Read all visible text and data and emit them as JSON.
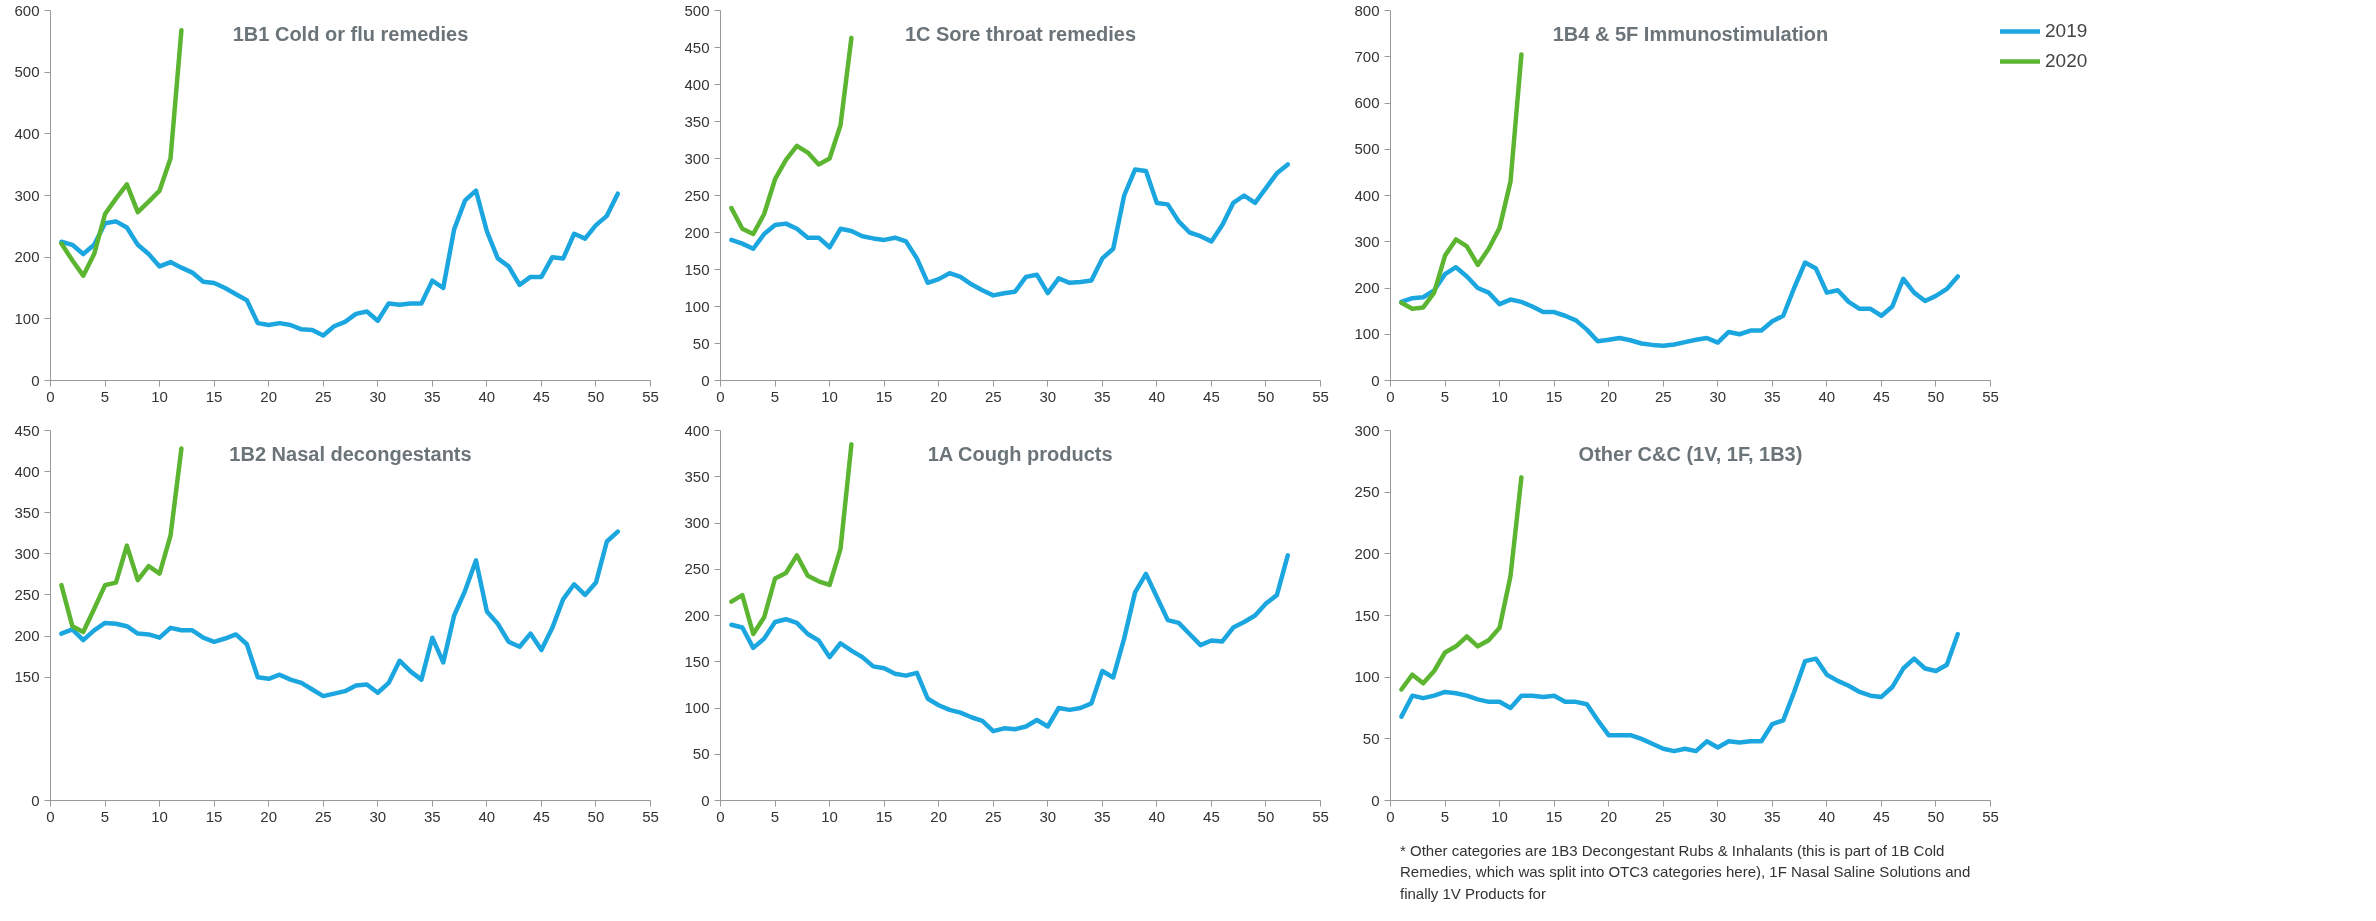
{
  "chart_data": [
    {
      "type": "line",
      "title": "1B1 Cold or flu remedies",
      "x": [
        1,
        2,
        3,
        4,
        5,
        6,
        7,
        8,
        9,
        10,
        11,
        12,
        13,
        14,
        15,
        16,
        17,
        18,
        19,
        20,
        21,
        22,
        23,
        24,
        25,
        26,
        27,
        28,
        29,
        30,
        31,
        32,
        33,
        34,
        35,
        36,
        37,
        38,
        39,
        40,
        41,
        42,
        43,
        44,
        45,
        46,
        47,
        48,
        49,
        50,
        51,
        52
      ],
      "xlim": [
        0,
        55
      ],
      "xticks": [
        0,
        5,
        10,
        15,
        20,
        25,
        30,
        35,
        40,
        45,
        50,
        55
      ],
      "ylim": [
        0,
        600
      ],
      "yticks": [
        0,
        100,
        200,
        300,
        400,
        500,
        600
      ],
      "grid": false,
      "legend": false,
      "series": [
        {
          "color": "#1ba6e0",
          "values": [
            225,
            220,
            205,
            220,
            255,
            258,
            248,
            220,
            205,
            185,
            192,
            183,
            175,
            160,
            158,
            150,
            140,
            130,
            93,
            90,
            93,
            90,
            83,
            82,
            73,
            88,
            95,
            108,
            112,
            97,
            125,
            123,
            125,
            125,
            162,
            150,
            245,
            292,
            308,
            242,
            198,
            185,
            155,
            168,
            168,
            200,
            198,
            238,
            230,
            252,
            267,
            303
          ]
        },
        {
          "color": "#5cb531",
          "x": [
            1,
            2,
            3,
            4,
            5,
            6,
            7,
            8,
            9,
            10,
            11,
            12
          ],
          "values": [
            222,
            195,
            170,
            205,
            270,
            295,
            318,
            273,
            290,
            308,
            360,
            568
          ]
        }
      ]
    },
    {
      "type": "line",
      "title": "1C Sore throat remedies",
      "x": [
        1,
        2,
        3,
        4,
        5,
        6,
        7,
        8,
        9,
        10,
        11,
        12,
        13,
        14,
        15,
        16,
        17,
        18,
        19,
        20,
        21,
        22,
        23,
        24,
        25,
        26,
        27,
        28,
        29,
        30,
        31,
        32,
        33,
        34,
        35,
        36,
        37,
        38,
        39,
        40,
        41,
        42,
        43,
        44,
        45,
        46,
        47,
        48,
        49,
        50,
        51,
        52
      ],
      "xlim": [
        0,
        55
      ],
      "xticks": [
        0,
        5,
        10,
        15,
        20,
        25,
        30,
        35,
        40,
        45,
        50,
        55
      ],
      "ylim": [
        0,
        500
      ],
      "yticks": [
        0,
        50,
        100,
        150,
        200,
        250,
        300,
        350,
        400,
        450,
        500
      ],
      "grid": false,
      "legend": false,
      "series": [
        {
          "color": "#1ba6e0",
          "values": [
            190,
            185,
            178,
            198,
            210,
            212,
            205,
            193,
            193,
            180,
            205,
            202,
            195,
            192,
            190,
            193,
            188,
            165,
            132,
            137,
            145,
            140,
            130,
            122,
            115,
            118,
            120,
            140,
            143,
            118,
            138,
            132,
            133,
            135,
            165,
            178,
            250,
            285,
            283,
            240,
            238,
            215,
            200,
            195,
            188,
            210,
            240,
            250,
            240,
            260,
            280,
            292
          ]
        },
        {
          "color": "#5cb531",
          "x": [
            1,
            2,
            3,
            4,
            5,
            6,
            7,
            8,
            9,
            10,
            11,
            12
          ],
          "values": [
            233,
            205,
            198,
            225,
            272,
            298,
            317,
            308,
            292,
            300,
            345,
            463
          ]
        }
      ]
    },
    {
      "type": "line",
      "title": "1B4 & 5F Immunostimulation",
      "x": [
        1,
        2,
        3,
        4,
        5,
        6,
        7,
        8,
        9,
        10,
        11,
        12,
        13,
        14,
        15,
        16,
        17,
        18,
        19,
        20,
        21,
        22,
        23,
        24,
        25,
        26,
        27,
        28,
        29,
        30,
        31,
        32,
        33,
        34,
        35,
        36,
        37,
        38,
        39,
        40,
        41,
        42,
        43,
        44,
        45,
        46,
        47,
        48,
        49,
        50,
        51,
        52
      ],
      "xlim": [
        0,
        55
      ],
      "xticks": [
        0,
        5,
        10,
        15,
        20,
        25,
        30,
        35,
        40,
        45,
        50,
        55
      ],
      "ylim": [
        0,
        800
      ],
      "yticks": [
        0,
        100,
        200,
        300,
        400,
        500,
        600,
        700,
        800
      ],
      "grid": false,
      "legend": "right",
      "series": [
        {
          "name": "2019",
          "color": "#1ba6e0",
          "values": [
            170,
            178,
            180,
            195,
            230,
            245,
            225,
            200,
            190,
            165,
            175,
            170,
            160,
            148,
            148,
            140,
            130,
            110,
            85,
            88,
            92,
            87,
            80,
            77,
            75,
            78,
            83,
            88,
            92,
            82,
            105,
            100,
            108,
            108,
            128,
            140,
            200,
            255,
            242,
            190,
            195,
            170,
            155,
            155,
            140,
            160,
            220,
            190,
            172,
            183,
            198,
            225
          ]
        },
        {
          "name": "2020",
          "color": "#5cb531",
          "x": [
            1,
            2,
            3,
            4,
            5,
            6,
            7,
            8,
            9,
            10,
            11,
            12
          ],
          "values": [
            168,
            155,
            158,
            190,
            270,
            305,
            290,
            250,
            285,
            330,
            430,
            705
          ]
        }
      ]
    },
    {
      "type": "line",
      "title": "1B2 Nasal decongestants",
      "x": [
        1,
        2,
        3,
        4,
        5,
        6,
        7,
        8,
        9,
        10,
        11,
        12,
        13,
        14,
        15,
        16,
        17,
        18,
        19,
        20,
        21,
        22,
        23,
        24,
        25,
        26,
        27,
        28,
        29,
        30,
        31,
        32,
        33,
        34,
        35,
        36,
        37,
        38,
        39,
        40,
        41,
        42,
        43,
        44,
        45,
        46,
        47,
        48,
        49,
        50,
        51,
        52
      ],
      "xlim": [
        0,
        55
      ],
      "xticks": [
        0,
        5,
        10,
        15,
        20,
        25,
        30,
        35,
        40,
        45,
        50,
        55
      ],
      "ylim": [
        0,
        450
      ],
      "yticks": [
        0,
        150,
        200,
        250,
        300,
        350,
        400,
        450
      ],
      "grid": false,
      "legend": false,
      "series": [
        {
          "color": "#1ba6e0",
          "values": [
            203,
            208,
            195,
            207,
            216,
            215,
            212,
            203,
            202,
            198,
            210,
            207,
            207,
            198,
            193,
            197,
            202,
            190,
            150,
            148,
            153,
            147,
            143,
            135,
            127,
            130,
            133,
            140,
            141,
            131,
            143,
            170,
            157,
            147,
            198,
            168,
            225,
            255,
            292,
            230,
            215,
            193,
            187,
            203,
            183,
            210,
            245,
            263,
            250,
            265,
            315,
            327
          ]
        },
        {
          "color": "#5cb531",
          "x": [
            1,
            2,
            3,
            4,
            5,
            6,
            7,
            8,
            9,
            10,
            11,
            12
          ],
          "values": [
            262,
            212,
            205,
            233,
            262,
            265,
            310,
            268,
            285,
            276,
            322,
            428
          ]
        }
      ]
    },
    {
      "type": "line",
      "title": "1A Cough products",
      "x": [
        1,
        2,
        3,
        4,
        5,
        6,
        7,
        8,
        9,
        10,
        11,
        12,
        13,
        14,
        15,
        16,
        17,
        18,
        19,
        20,
        21,
        22,
        23,
        24,
        25,
        26,
        27,
        28,
        29,
        30,
        31,
        32,
        33,
        34,
        35,
        36,
        37,
        38,
        39,
        40,
        41,
        42,
        43,
        44,
        45,
        46,
        47,
        48,
        49,
        50,
        51,
        52
      ],
      "xlim": [
        0,
        55
      ],
      "xticks": [
        0,
        5,
        10,
        15,
        20,
        25,
        30,
        35,
        40,
        45,
        50,
        55
      ],
      "ylim": [
        0,
        400
      ],
      "yticks": [
        0,
        50,
        100,
        150,
        200,
        250,
        300,
        350,
        400
      ],
      "grid": false,
      "legend": false,
      "series": [
        {
          "color": "#1ba6e0",
          "values": [
            190,
            187,
            165,
            175,
            193,
            196,
            192,
            180,
            173,
            155,
            170,
            162,
            155,
            145,
            143,
            137,
            135,
            138,
            110,
            103,
            98,
            95,
            90,
            86,
            75,
            78,
            77,
            80,
            87,
            80,
            100,
            98,
            100,
            105,
            140,
            133,
            175,
            225,
            245,
            220,
            195,
            192,
            180,
            168,
            173,
            172,
            187,
            193,
            200,
            213,
            222,
            265
          ]
        },
        {
          "color": "#5cb531",
          "x": [
            1,
            2,
            3,
            4,
            5,
            6,
            7,
            8,
            9,
            10,
            11,
            12
          ],
          "values": [
            215,
            222,
            180,
            198,
            240,
            246,
            265,
            243,
            237,
            233,
            272,
            385
          ]
        }
      ]
    },
    {
      "type": "line",
      "title": "Other C&C (1V, 1F, 1B3)",
      "x": [
        1,
        2,
        3,
        4,
        5,
        6,
        7,
        8,
        9,
        10,
        11,
        12,
        13,
        14,
        15,
        16,
        17,
        18,
        19,
        20,
        21,
        22,
        23,
        24,
        25,
        26,
        27,
        28,
        29,
        30,
        31,
        32,
        33,
        34,
        35,
        36,
        37,
        38,
        39,
        40,
        41,
        42,
        43,
        44,
        45,
        46,
        47,
        48,
        49,
        50,
        51,
        52
      ],
      "xlim": [
        0,
        55
      ],
      "xticks": [
        0,
        5,
        10,
        15,
        20,
        25,
        30,
        35,
        40,
        45,
        50,
        55
      ],
      "ylim": [
        0,
        300
      ],
      "yticks": [
        0,
        50,
        100,
        150,
        200,
        250,
        300
      ],
      "grid": false,
      "legend": false,
      "annotations": [
        "* Other categories are 1B3 Decongestant Rubs & Inhalants (this is part of 1B Cold Remedies, which was split into OTC3 categories here), 1F Nasal Saline Solutions and finally 1V Products for"
      ],
      "series": [
        {
          "color": "#1ba6e0",
          "values": [
            68,
            85,
            83,
            85,
            88,
            87,
            85,
            82,
            80,
            80,
            75,
            85,
            85,
            84,
            85,
            80,
            80,
            78,
            65,
            53,
            53,
            53,
            50,
            46,
            42,
            40,
            42,
            40,
            48,
            43,
            48,
            47,
            48,
            48,
            62,
            65,
            88,
            113,
            115,
            102,
            97,
            93,
            88,
            85,
            84,
            92,
            107,
            115,
            107,
            105,
            110,
            135
          ]
        },
        {
          "color": "#5cb531",
          "x": [
            1,
            2,
            3,
            4,
            5,
            6,
            7,
            8,
            9,
            10,
            11,
            12
          ],
          "values": [
            90,
            102,
            95,
            105,
            120,
            125,
            133,
            125,
            130,
            140,
            182,
            262
          ]
        }
      ]
    }
  ]
}
